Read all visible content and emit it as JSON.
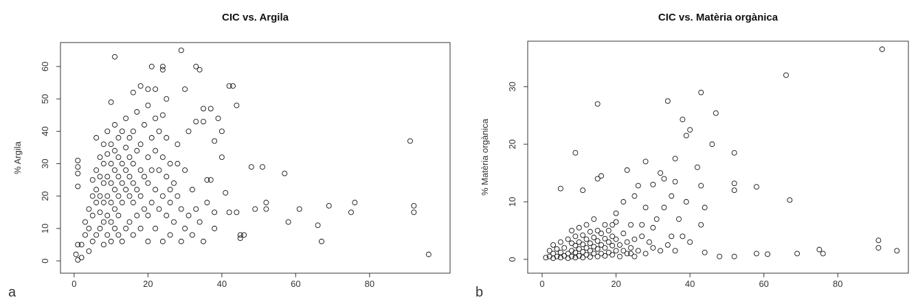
{
  "chart_data": [
    {
      "type": "scatter",
      "title": "CIC vs. Argila",
      "y_label": "% Argila",
      "panel_label": "a",
      "xlim": [
        -3.7,
        101.8
      ],
      "ylim": [
        -3.8,
        67.4
      ],
      "xticks": [
        0,
        20,
        40,
        60,
        80
      ],
      "yticks": [
        0,
        10,
        20,
        30,
        40,
        50,
        60
      ],
      "color": "#111111",
      "x": [
        11,
        29,
        21,
        24,
        24,
        33,
        34,
        43,
        42,
        44,
        91,
        92,
        92,
        96,
        75,
        76,
        69,
        66,
        67,
        61,
        58,
        57,
        51,
        52,
        52,
        48,
        49,
        45,
        45,
        40,
        40,
        39,
        38,
        37,
        35,
        35,
        33,
        36,
        37,
        30,
        26,
        28,
        1,
        1,
        1,
        1,
        1,
        2,
        1,
        0.5,
        10,
        6,
        18,
        20,
        22,
        16,
        25,
        24,
        2,
        3,
        3,
        4,
        4,
        4,
        5,
        5,
        5,
        5,
        6,
        6,
        6,
        6,
        7,
        7,
        7,
        7,
        7,
        8,
        8,
        8,
        8,
        8,
        8,
        9,
        9,
        9,
        9,
        9,
        9,
        10,
        10,
        10,
        10,
        10,
        10,
        11,
        11,
        11,
        11,
        11,
        11,
        12,
        12,
        12,
        12,
        12,
        12,
        13,
        13,
        13,
        13,
        13,
        14,
        14,
        14,
        14,
        14,
        15,
        15,
        15,
        15,
        15,
        16,
        16,
        16,
        16,
        16,
        17,
        17,
        17,
        17,
        18,
        18,
        18,
        18,
        19,
        19,
        19,
        20,
        20,
        20,
        20,
        20,
        21,
        21,
        21,
        22,
        22,
        22,
        22,
        23,
        23,
        23,
        24,
        24,
        24,
        25,
        25,
        25,
        26,
        26,
        26,
        27,
        27,
        28,
        28,
        29,
        29,
        30,
        30,
        31,
        31,
        32,
        32,
        33,
        34,
        35,
        36,
        38,
        38,
        41,
        42,
        44,
        46
      ],
      "values": [
        63,
        65,
        60,
        60,
        59,
        60,
        59,
        54,
        54,
        48,
        37,
        17,
        15,
        2,
        15,
        18,
        17,
        11,
        6,
        16,
        12,
        27,
        29,
        18,
        16,
        29,
        16,
        8,
        7,
        32,
        40,
        44,
        37,
        47,
        47,
        43,
        43,
        25,
        25,
        53,
        22,
        30,
        31,
        29,
        27,
        23,
        5,
        1,
        0.3,
        2,
        49,
        38,
        54,
        53,
        53,
        52,
        50,
        45,
        5,
        8,
        12,
        3,
        10,
        16,
        6,
        14,
        20,
        25,
        8,
        18,
        22,
        28,
        10,
        15,
        20,
        26,
        32,
        5,
        12,
        18,
        24,
        30,
        36,
        8,
        14,
        20,
        26,
        33,
        40,
        6,
        12,
        18,
        24,
        30,
        36,
        10,
        16,
        22,
        28,
        34,
        42,
        8,
        14,
        20,
        26,
        32,
        38,
        6,
        18,
        24,
        30,
        40,
        10,
        22,
        28,
        35,
        44,
        12,
        20,
        26,
        32,
        38,
        8,
        18,
        24,
        30,
        40,
        14,
        22,
        34,
        46,
        10,
        20,
        28,
        36,
        16,
        26,
        42,
        6,
        14,
        24,
        32,
        48,
        18,
        28,
        38,
        10,
        22,
        34,
        44,
        16,
        28,
        40,
        6,
        20,
        32,
        14,
        26,
        38,
        8,
        18,
        30,
        12,
        24,
        20,
        36,
        6,
        16,
        10,
        28,
        14,
        40,
        8,
        22,
        16,
        12,
        6,
        18,
        10,
        15,
        21,
        15,
        15,
        8
      ]
    },
    {
      "type": "scatter",
      "title": "CIC vs. Matèria orgànica",
      "y_label": "% Matèria orgànica",
      "panel_label": "b",
      "xlim": [
        -3.9,
        99.1
      ],
      "ylim": [
        -2.4,
        37.9
      ],
      "xticks": [
        0,
        20,
        40,
        60,
        80
      ],
      "yticks": [
        0,
        10,
        20,
        30
      ],
      "color": "#111111",
      "x": [
        92,
        66,
        43,
        34,
        15,
        47,
        38,
        40,
        39,
        46,
        28,
        52,
        9,
        36,
        42,
        32,
        33,
        23,
        16,
        15,
        52,
        52,
        58,
        67,
        43,
        44,
        39,
        35,
        26,
        30,
        43,
        36,
        5,
        11,
        48,
        52,
        58,
        61,
        69,
        75,
        76,
        91,
        91,
        96,
        44,
        30,
        24,
        34,
        38,
        37,
        31,
        28,
        25,
        22,
        27,
        20,
        19,
        1,
        2,
        2,
        3,
        3,
        3,
        4,
        4,
        5,
        5,
        5,
        6,
        6,
        7,
        7,
        7,
        8,
        8,
        8,
        8,
        9,
        9,
        9,
        9,
        10,
        10,
        10,
        10,
        11,
        11,
        11,
        11,
        12,
        12,
        12,
        12,
        13,
        13,
        13,
        13,
        14,
        14,
        14,
        14,
        15,
        15,
        15,
        15,
        16,
        16,
        16,
        17,
        17,
        17,
        17,
        18,
        18,
        18,
        19,
        19,
        19,
        20,
        20,
        20,
        21,
        21,
        22,
        22,
        23,
        23,
        24,
        24,
        25,
        25,
        26,
        27,
        28,
        29,
        30,
        32,
        33,
        35,
        36,
        40
      ],
      "values": [
        36.5,
        32,
        29,
        27.5,
        27,
        25.4,
        24.3,
        22.5,
        21.5,
        20,
        17,
        18.5,
        18.5,
        17.5,
        16,
        15,
        14,
        15.5,
        14.5,
        14,
        13.2,
        12,
        12.6,
        10.3,
        12.8,
        9,
        10,
        11,
        12.8,
        13,
        6,
        13.5,
        12.3,
        12,
        0.5,
        0.5,
        1,
        0.9,
        1,
        1.7,
        1,
        3.3,
        2,
        1.5,
        1.2,
        2,
        1,
        2.5,
        4,
        7,
        7,
        9,
        11,
        10,
        6,
        8,
        6,
        0.3,
        0.5,
        1.5,
        0.2,
        1,
        2.5,
        0.5,
        1.8,
        0.3,
        1.2,
        3,
        0.6,
        2,
        0.2,
        1,
        3.5,
        0.5,
        1.5,
        2.8,
        5,
        0.3,
        1.2,
        2.4,
        4,
        0.6,
        1.8,
        3,
        5.5,
        0.3,
        1.3,
        2.6,
        4.2,
        0.8,
        2,
        3.5,
        6,
        0.4,
        1.5,
        2.8,
        4.8,
        1,
        2.2,
        3.8,
        7,
        0.5,
        1.8,
        3.2,
        5,
        1,
        2.5,
        4.5,
        0.6,
        2,
        3.6,
        6,
        1.2,
        3,
        5,
        0.8,
        2.4,
        4,
        1.5,
        3.5,
        6.5,
        0.5,
        2.5,
        1.5,
        4.5,
        1,
        3,
        2,
        6,
        0.5,
        3.5,
        1.5,
        4,
        1,
        3,
        5.5,
        1.5,
        9,
        4,
        1.5,
        3
      ]
    }
  ]
}
